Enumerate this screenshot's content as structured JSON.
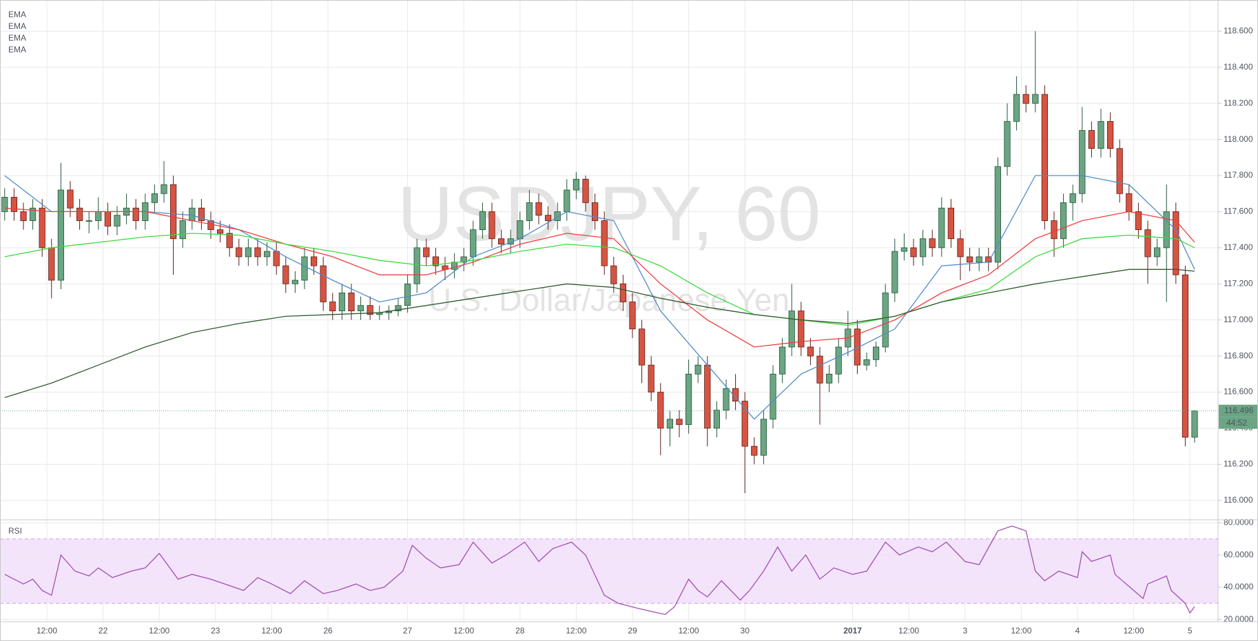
{
  "chart_data": [
    {
      "type": "candlestick",
      "title": "USDJPY, 60",
      "subtitle": "U.S. Dollar/Japanese Yen",
      "x": [
        0,
        2,
        4,
        6,
        8,
        10,
        12,
        14,
        16,
        18,
        20,
        22,
        24,
        26,
        28,
        30,
        32,
        34,
        36,
        38,
        40,
        42,
        44,
        46,
        48,
        50,
        52,
        54,
        56,
        58,
        60,
        62,
        64,
        66,
        68,
        70,
        72,
        74,
        76,
        78,
        80,
        82,
        84,
        86,
        88,
        90,
        92,
        94,
        96,
        98,
        100,
        102,
        104,
        106,
        108,
        110,
        112,
        114,
        116,
        118,
        120,
        122,
        124,
        126,
        128,
        130,
        132,
        134,
        136,
        138,
        140,
        142,
        144,
        146,
        148,
        150,
        152,
        154,
        156,
        158,
        160,
        162,
        164,
        166,
        168,
        170,
        172,
        174,
        176,
        178,
        180,
        182,
        184,
        186,
        188,
        190,
        192,
        194,
        196,
        198,
        200,
        202,
        204,
        206,
        208,
        210,
        212,
        214,
        216,
        218,
        220,
        222,
        224,
        226,
        228,
        230,
        232,
        234,
        236,
        238,
        240,
        242,
        244,
        246,
        248,
        250,
        252,
        254
      ],
      "open": [
        117.6,
        117.68,
        117.6,
        117.55,
        117.62,
        117.4,
        117.22,
        117.72,
        117.62,
        117.55,
        117.55,
        117.6,
        117.52,
        117.58,
        117.62,
        117.55,
        117.65,
        117.7,
        117.75,
        117.45,
        117.55,
        117.62,
        117.55,
        117.5,
        117.48,
        117.4,
        117.35,
        117.4,
        117.35,
        117.38,
        117.3,
        117.2,
        117.22,
        117.35,
        117.3,
        117.1,
        117.05,
        117.15,
        117.05,
        117.08,
        117.03,
        117.04,
        117.05,
        117.08,
        117.2,
        117.4,
        117.35,
        117.3,
        117.28,
        117.32,
        117.35,
        117.5,
        117.6,
        117.45,
        117.42,
        117.45,
        117.55,
        117.65,
        117.58,
        117.55,
        117.6,
        117.72,
        117.78,
        117.65,
        117.55,
        117.3,
        117.2,
        117.1,
        116.95,
        116.75,
        116.6,
        116.4,
        116.45,
        116.42,
        116.7,
        116.75,
        116.4,
        116.5,
        116.62,
        116.55,
        116.3,
        116.25,
        116.45,
        116.7,
        116.85,
        117.05,
        116.85,
        116.8,
        116.65,
        116.7,
        116.85,
        116.95,
        116.75,
        116.78,
        116.85,
        117.15,
        117.38,
        117.4,
        117.35,
        117.45,
        117.4,
        117.62,
        117.45,
        117.35,
        117.32,
        117.35,
        117.32,
        117.85,
        118.1,
        118.25,
        118.2,
        118.25,
        117.55,
        117.45,
        117.65,
        117.7,
        118.05,
        117.95,
        118.1,
        117.95,
        117.7,
        117.6,
        117.5,
        117.35,
        117.4,
        117.6,
        117.25,
        116.35
      ],
      "high": [
        117.73,
        117.73,
        117.65,
        117.67,
        117.67,
        117.45,
        117.87,
        117.77,
        117.67,
        117.6,
        117.68,
        117.65,
        117.63,
        117.7,
        117.67,
        117.7,
        117.75,
        117.88,
        117.8,
        117.6,
        117.67,
        117.67,
        117.6,
        117.55,
        117.53,
        117.45,
        117.45,
        117.45,
        117.43,
        117.43,
        117.35,
        117.27,
        117.4,
        117.4,
        117.35,
        117.15,
        117.2,
        117.2,
        117.13,
        117.13,
        117.08,
        117.08,
        117.12,
        117.25,
        117.45,
        117.45,
        117.4,
        117.35,
        117.37,
        117.4,
        117.55,
        117.65,
        117.65,
        117.5,
        117.5,
        117.6,
        117.72,
        117.7,
        117.63,
        117.65,
        117.78,
        117.82,
        117.8,
        117.7,
        117.6,
        117.35,
        117.25,
        117.15,
        117.0,
        116.8,
        116.65,
        116.5,
        116.5,
        116.78,
        116.8,
        116.8,
        116.55,
        116.67,
        116.7,
        116.6,
        116.35,
        116.5,
        116.75,
        116.9,
        117.2,
        117.1,
        116.9,
        116.85,
        116.75,
        116.9,
        117.05,
        117.0,
        116.82,
        116.88,
        117.2,
        117.45,
        117.48,
        117.45,
        117.5,
        117.5,
        117.68,
        117.67,
        117.5,
        117.4,
        117.4,
        117.4,
        117.9,
        118.2,
        118.35,
        118.3,
        118.6,
        118.3,
        117.6,
        117.7,
        117.75,
        118.18,
        118.1,
        118.17,
        118.15,
        118.0,
        117.75,
        117.65,
        117.55,
        117.45,
        117.75,
        117.65,
        117.3,
        116.5
      ],
      "low": [
        117.55,
        117.55,
        117.5,
        117.5,
        117.35,
        117.12,
        117.17,
        117.57,
        117.5,
        117.48,
        117.5,
        117.47,
        117.47,
        117.53,
        117.5,
        117.5,
        117.6,
        117.65,
        117.25,
        117.4,
        117.5,
        117.5,
        117.45,
        117.43,
        117.35,
        117.3,
        117.3,
        117.3,
        117.3,
        117.25,
        117.15,
        117.15,
        117.17,
        117.25,
        117.05,
        117.0,
        117.0,
        117.0,
        117.0,
        117.0,
        117.0,
        117.0,
        117.02,
        117.04,
        117.15,
        117.3,
        117.25,
        117.22,
        117.23,
        117.27,
        117.3,
        117.45,
        117.4,
        117.37,
        117.37,
        117.4,
        117.5,
        117.53,
        117.5,
        117.5,
        117.55,
        117.67,
        117.6,
        117.5,
        117.25,
        117.15,
        117.05,
        116.9,
        116.65,
        116.55,
        116.25,
        116.3,
        116.35,
        116.37,
        116.65,
        116.3,
        116.35,
        116.45,
        116.5,
        116.04,
        116.2,
        116.2,
        116.4,
        116.65,
        116.8,
        116.8,
        116.75,
        116.42,
        116.6,
        116.65,
        116.8,
        116.7,
        116.72,
        116.74,
        116.82,
        117.1,
        117.33,
        117.3,
        117.3,
        117.35,
        117.35,
        117.4,
        117.22,
        117.27,
        117.27,
        117.27,
        117.28,
        117.8,
        118.05,
        118.15,
        118.15,
        117.5,
        117.35,
        117.4,
        117.55,
        117.65,
        117.9,
        117.9,
        117.9,
        117.65,
        117.55,
        117.45,
        117.2,
        117.3,
        117.1,
        117.2,
        116.3,
        116.32
      ],
      "close": [
        117.68,
        117.6,
        117.55,
        117.62,
        117.4,
        117.22,
        117.72,
        117.62,
        117.55,
        117.55,
        117.6,
        117.52,
        117.58,
        117.62,
        117.55,
        117.65,
        117.7,
        117.75,
        117.45,
        117.55,
        117.62,
        117.55,
        117.5,
        117.48,
        117.4,
        117.35,
        117.4,
        117.35,
        117.38,
        117.3,
        117.2,
        117.22,
        117.35,
        117.3,
        117.1,
        117.05,
        117.15,
        117.05,
        117.08,
        117.03,
        117.04,
        117.05,
        117.08,
        117.2,
        117.4,
        117.35,
        117.3,
        117.28,
        117.32,
        117.35,
        117.5,
        117.6,
        117.45,
        117.42,
        117.45,
        117.55,
        117.65,
        117.58,
        117.55,
        117.6,
        117.72,
        117.78,
        117.65,
        117.55,
        117.3,
        117.2,
        117.1,
        116.95,
        116.75,
        116.6,
        116.4,
        116.45,
        116.42,
        116.7,
        116.75,
        116.4,
        116.5,
        116.62,
        116.55,
        116.3,
        116.25,
        116.45,
        116.7,
        116.85,
        117.05,
        116.85,
        116.8,
        116.65,
        116.7,
        116.85,
        116.95,
        116.75,
        116.78,
        116.85,
        117.15,
        117.38,
        117.4,
        117.35,
        117.45,
        117.4,
        117.62,
        117.45,
        117.35,
        117.32,
        117.35,
        117.32,
        117.85,
        118.1,
        118.25,
        118.2,
        118.25,
        117.55,
        117.45,
        117.65,
        117.7,
        118.05,
        117.95,
        118.1,
        117.95,
        117.7,
        117.6,
        117.5,
        117.35,
        117.4,
        117.6,
        117.25,
        116.35,
        116.496
      ],
      "up_color": "#6ba583",
      "down_color": "#d75442",
      "up_border": "#225437",
      "down_border": "#5b1a13",
      "series": [
        {
          "name": "EMA",
          "color": "#4f8bc9",
          "x": [
            0,
            10,
            20,
            30,
            40,
            50,
            60,
            70,
            80,
            90,
            100,
            110,
            120,
            130,
            140,
            150,
            160,
            170,
            180,
            190,
            200,
            210,
            220,
            230,
            240,
            250,
            254
          ],
          "values": [
            117.8,
            117.6,
            117.6,
            117.6,
            117.58,
            117.5,
            117.35,
            117.22,
            117.1,
            117.15,
            117.35,
            117.45,
            117.6,
            117.55,
            117.05,
            116.75,
            116.45,
            116.7,
            116.82,
            116.95,
            117.3,
            117.32,
            117.8,
            117.8,
            117.75,
            117.5,
            117.28
          ]
        },
        {
          "name": "EMA",
          "color": "#f03c3c",
          "x": [
            0,
            10,
            20,
            30,
            40,
            50,
            60,
            70,
            80,
            90,
            100,
            110,
            120,
            130,
            140,
            150,
            160,
            170,
            180,
            190,
            200,
            210,
            220,
            230,
            240,
            250,
            254
          ],
          "values": [
            117.62,
            117.6,
            117.6,
            117.6,
            117.55,
            117.5,
            117.42,
            117.35,
            117.25,
            117.25,
            117.32,
            117.42,
            117.48,
            117.45,
            117.2,
            117.0,
            116.85,
            116.88,
            116.9,
            117.0,
            117.15,
            117.25,
            117.45,
            117.55,
            117.6,
            117.55,
            117.43
          ]
        },
        {
          "name": "EMA",
          "color": "#3cd83c",
          "x": [
            0,
            10,
            20,
            30,
            40,
            50,
            60,
            70,
            80,
            90,
            100,
            110,
            120,
            130,
            140,
            150,
            160,
            170,
            180,
            190,
            200,
            210,
            220,
            230,
            240,
            250,
            254
          ],
          "values": [
            117.35,
            117.4,
            117.43,
            117.46,
            117.48,
            117.47,
            117.42,
            117.38,
            117.33,
            117.3,
            117.33,
            117.38,
            117.42,
            117.4,
            117.3,
            117.15,
            117.03,
            117.0,
            116.97,
            117.02,
            117.1,
            117.17,
            117.35,
            117.45,
            117.47,
            117.45,
            117.4
          ]
        },
        {
          "name": "EMA",
          "color": "#2f5a2f",
          "x": [
            0,
            10,
            20,
            30,
            40,
            50,
            60,
            70,
            80,
            90,
            100,
            110,
            120,
            130,
            140,
            150,
            160,
            170,
            180,
            190,
            200,
            210,
            220,
            230,
            240,
            250,
            254
          ],
          "values": [
            116.57,
            116.65,
            116.75,
            116.85,
            116.93,
            116.98,
            117.02,
            117.03,
            117.04,
            117.08,
            117.12,
            117.16,
            117.2,
            117.18,
            117.12,
            117.07,
            117.03,
            117.0,
            116.98,
            117.02,
            117.1,
            117.15,
            117.2,
            117.24,
            117.28,
            117.28,
            117.27
          ]
        }
      ],
      "xlim": [
        -1,
        259
      ],
      "ylim": [
        115.9,
        118.75
      ],
      "xticks": [
        {
          "value": 9,
          "label": "12:00"
        },
        {
          "value": 21,
          "label": "22"
        },
        {
          "value": 33,
          "label": "12:00"
        },
        {
          "value": 45,
          "label": "23"
        },
        {
          "value": 57,
          "label": "12:00"
        },
        {
          "value": 69,
          "label": "26"
        },
        {
          "value": 86,
          "label": "27"
        },
        {
          "value": 98,
          "label": "12:00"
        },
        {
          "value": 110,
          "label": "28"
        },
        {
          "value": 122,
          "label": "12:00"
        },
        {
          "value": 134,
          "label": "29"
        },
        {
          "value": 146,
          "label": "12:00"
        },
        {
          "value": 158,
          "label": "30"
        },
        {
          "value": 181,
          "label": "2017"
        },
        {
          "value": 193,
          "label": "12:00"
        },
        {
          "value": 205,
          "label": "3"
        },
        {
          "value": 217,
          "label": "12:00"
        },
        {
          "value": 229,
          "label": "4"
        },
        {
          "value": 241,
          "label": "12:00"
        },
        {
          "value": 253,
          "label": "5"
        }
      ],
      "yticks": [
        {
          "value": 116,
          "label": "116.000"
        },
        {
          "value": 116.2,
          "label": "116.200"
        },
        {
          "value": 116.4,
          "label": "116.400"
        },
        {
          "value": 116.6,
          "label": "116.600"
        },
        {
          "value": 116.8,
          "label": "116.800"
        },
        {
          "value": 117,
          "label": "117.000"
        },
        {
          "value": 117.2,
          "label": "117.200"
        },
        {
          "value": 117.4,
          "label": "117.400"
        },
        {
          "value": 117.6,
          "label": "117.600"
        },
        {
          "value": 117.8,
          "label": "117.800"
        },
        {
          "value": 118,
          "label": "118.000"
        },
        {
          "value": 118.2,
          "label": "118.200"
        },
        {
          "value": 118.4,
          "label": "118.400"
        },
        {
          "value": 118.6,
          "label": "118.600"
        }
      ],
      "grid": true,
      "countdown": "44:52"
    },
    {
      "type": "line",
      "title": "RSI",
      "x": [
        0,
        4,
        6,
        8,
        10,
        12,
        15,
        18,
        20,
        23,
        27,
        30,
        33,
        37,
        40,
        44,
        47,
        51,
        54,
        57,
        61,
        64,
        68,
        71,
        75,
        78,
        81,
        85,
        87,
        90,
        93,
        97,
        100,
        104,
        107,
        111,
        114,
        117,
        121,
        124,
        128,
        131,
        135,
        138,
        141,
        143,
        146,
        148,
        150,
        153,
        157,
        159,
        162,
        165,
        168,
        171,
        174,
        177,
        181,
        184,
        188,
        191,
        195,
        198,
        201,
        205,
        208,
        212,
        215,
        218,
        220,
        222,
        225,
        229,
        230,
        232,
        236,
        237,
        241,
        243,
        244,
        248,
        249,
        252,
        253,
        254
      ],
      "values": [
        48,
        42,
        45,
        38,
        35,
        60,
        50,
        47,
        52,
        46,
        50,
        52,
        61,
        45,
        48,
        45,
        42,
        38,
        46,
        42,
        36,
        44,
        36,
        38,
        42,
        38,
        40,
        50,
        66,
        58,
        52,
        54,
        68,
        55,
        60,
        68,
        56,
        64,
        68,
        60,
        35,
        30,
        27,
        25,
        23,
        28,
        45,
        38,
        34,
        44,
        32,
        38,
        50,
        65,
        50,
        60,
        45,
        52,
        48,
        50,
        68,
        60,
        65,
        62,
        68,
        56,
        54,
        75,
        78,
        75,
        50,
        44,
        50,
        46,
        62,
        56,
        60,
        48,
        38,
        33,
        42,
        47,
        38,
        30,
        24,
        28
      ],
      "color": "#a24db5",
      "band": [
        30,
        70
      ],
      "band_color": "#f3e4fb",
      "xlim": [
        -1,
        259
      ],
      "ylim": [
        19,
        81
      ],
      "yticks": [
        {
          "value": 20,
          "label": "20.0000"
        },
        {
          "value": 40,
          "label": "40.0000"
        },
        {
          "value": 60,
          "label": "60.0000"
        },
        {
          "value": 80,
          "label": "80.0000"
        }
      ]
    }
  ]
}
